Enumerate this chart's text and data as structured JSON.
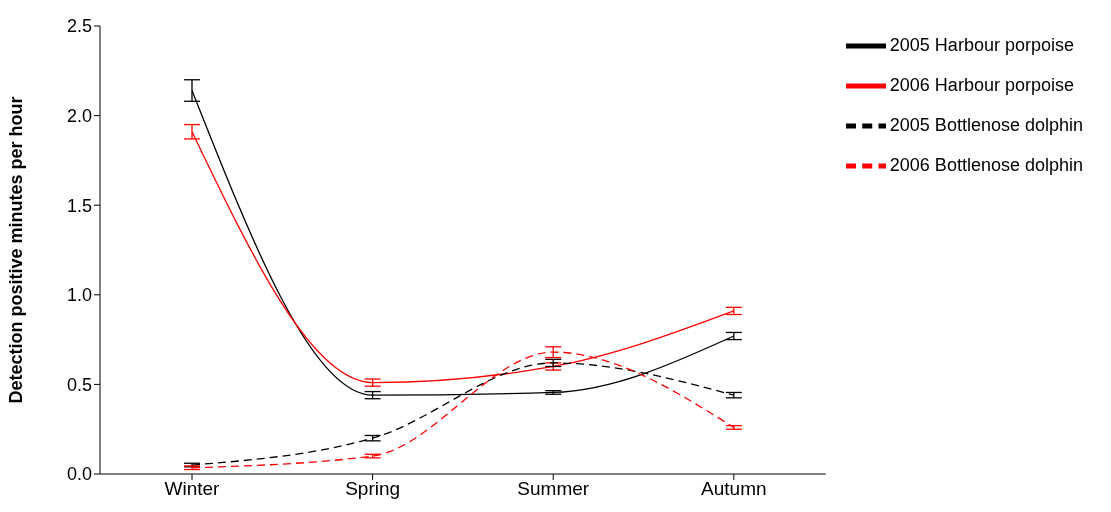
{
  "chart_data": {
    "type": "line",
    "ylabel": "Detection positive minutes per hour",
    "categories": [
      "Winter",
      "Spring",
      "Summer",
      "Autumn"
    ],
    "series": [
      {
        "name": "2005 Harbour porpoise",
        "color": "#000000",
        "line_style": "solid",
        "values": [
          2.14,
          0.44,
          0.455,
          0.77
        ],
        "errors": [
          0.06,
          0.02,
          0.01,
          0.02
        ]
      },
      {
        "name": "2006 Harbour porpoise",
        "color": "#ff0000",
        "line_style": "solid",
        "values": [
          1.91,
          0.51,
          0.6,
          0.91
        ],
        "errors": [
          0.04,
          0.02,
          0.02,
          0.02
        ]
      },
      {
        "name": "2005 Bottlenose dolphin",
        "color": "#000000",
        "line_style": "dashed",
        "values": [
          0.05,
          0.2,
          0.62,
          0.44
        ],
        "errors": [
          0.01,
          0.015,
          0.02,
          0.015
        ]
      },
      {
        "name": "2006 Bottlenose dolphin",
        "color": "#ff0000",
        "line_style": "dashed",
        "values": [
          0.035,
          0.1,
          0.68,
          0.26
        ],
        "errors": [
          0.01,
          0.01,
          0.03,
          0.01
        ]
      }
    ],
    "ylim": [
      0,
      2.5
    ],
    "yticks": [
      {
        "value": 0,
        "label": "0.0"
      },
      0.5,
      {
        "value": 1,
        "label": "1.0"
      },
      1.5,
      {
        "value": 2,
        "label": "2.0"
      },
      2.5
    ],
    "legend": "top right",
    "marker": "none"
  }
}
